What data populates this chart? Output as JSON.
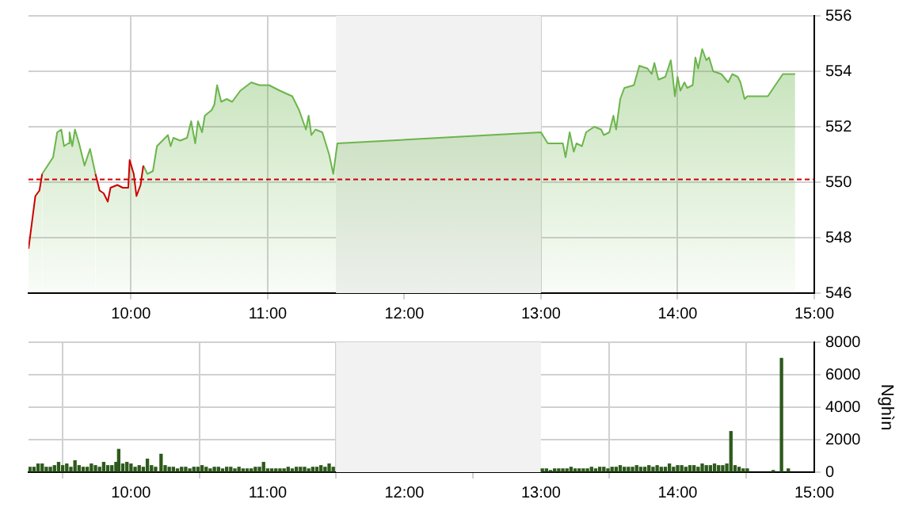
{
  "chart_data": [
    {
      "type": "area",
      "x": [
        9.25,
        9.3,
        9.33,
        9.35,
        9.39,
        9.43,
        9.46,
        9.49,
        9.51,
        9.54,
        9.55,
        9.57,
        9.59,
        9.62,
        9.66,
        9.7,
        9.74,
        9.77,
        9.8,
        9.83,
        9.85,
        9.9,
        9.94,
        9.98,
        9.99,
        10.02,
        10.04,
        10.07,
        10.09,
        10.12,
        10.16,
        10.19,
        10.25,
        10.27,
        10.29,
        10.31,
        10.36,
        10.41,
        10.44,
        10.47,
        10.49,
        10.52,
        10.54,
        10.59,
        10.61,
        10.63,
        10.66,
        10.7,
        10.74,
        10.8,
        10.88,
        10.94,
        11.01,
        11.09,
        11.18,
        11.23,
        11.28,
        11.3,
        11.32,
        11.35,
        11.4,
        11.45,
        11.48,
        11.51,
        13.0,
        13.05,
        13.16,
        13.18,
        13.21,
        13.24,
        13.26,
        13.3,
        13.33,
        13.39,
        13.44,
        13.46,
        13.5,
        13.53,
        13.55,
        13.58,
        13.61,
        13.68,
        13.72,
        13.78,
        13.81,
        13.83,
        13.86,
        13.91,
        13.95,
        13.96,
        13.98,
        14.0,
        14.02,
        14.05,
        14.07,
        14.11,
        14.13,
        14.15,
        14.18,
        14.21,
        14.23,
        14.26,
        14.32,
        14.37,
        14.4,
        14.44,
        14.46,
        14.49,
        14.51,
        14.66,
        14.77,
        14.86
      ],
      "series": [
        {
          "color": "#cc0000",
          "values": [
            547.6,
            549.5,
            549.7,
            550.3,
            null,
            null,
            null,
            null,
            null,
            null,
            null,
            null,
            null,
            null,
            null,
            null,
            550.3,
            549.7,
            549.6,
            549.3,
            549.8,
            549.9,
            549.8,
            549.8,
            550.8,
            550.3,
            549.5,
            549.9,
            550.6,
            null,
            null,
            null,
            null,
            null,
            null,
            null,
            null,
            null,
            null,
            null,
            null,
            null,
            null,
            null,
            null,
            null,
            null,
            null,
            null,
            null,
            null,
            null,
            null,
            null,
            null,
            null,
            null,
            null,
            null,
            null,
            null,
            null,
            null,
            null,
            null,
            null,
            null,
            null,
            null,
            null,
            null,
            null,
            null,
            null,
            null,
            null,
            null,
            null,
            null,
            null,
            null,
            null,
            null,
            null,
            null,
            null,
            null,
            null,
            null,
            null,
            null,
            null,
            null,
            null,
            null,
            null,
            null,
            null,
            null,
            null,
            null,
            null,
            null,
            null,
            null,
            null,
            null,
            null,
            null,
            null,
            null,
            null
          ]
        },
        {
          "color": "#6cb54c",
          "values": [
            null,
            null,
            null,
            550.3,
            550.6,
            550.9,
            551.8,
            551.9,
            551.3,
            551.4,
            551.8,
            551.3,
            551.9,
            551.4,
            550.6,
            551.2,
            550.3,
            null,
            null,
            null,
            null,
            null,
            null,
            null,
            null,
            null,
            null,
            null,
            550.6,
            550.3,
            550.4,
            551.3,
            551.6,
            551.7,
            551.3,
            551.6,
            551.5,
            551.6,
            552.2,
            551.4,
            552.2,
            551.8,
            552.4,
            552.6,
            552.8,
            553.5,
            552.9,
            553.0,
            552.9,
            553.3,
            553.6,
            553.5,
            553.5,
            553.3,
            553.1,
            552.6,
            551.9,
            552.4,
            551.7,
            551.9,
            551.8,
            551.0,
            550.3,
            551.4,
            551.8,
            551.4,
            551.4,
            550.9,
            551.8,
            551.1,
            551.4,
            551.3,
            551.8,
            552.0,
            551.9,
            551.7,
            551.8,
            552.4,
            551.9,
            553.0,
            553.4,
            553.5,
            554.2,
            554.1,
            553.9,
            554.3,
            553.7,
            553.8,
            554.4,
            554.0,
            553.1,
            553.8,
            553.3,
            553.6,
            553.4,
            553.5,
            554.5,
            554.1,
            554.8,
            554.4,
            554.5,
            554.0,
            553.9,
            553.6,
            553.9,
            553.8,
            553.6,
            553.0,
            553.1,
            553.1,
            553.9,
            553.9
          ]
        }
      ],
      "xlim": [
        9.25,
        15
      ],
      "xticks": [
        {
          "value": 10,
          "label": "10:00"
        },
        {
          "value": 11,
          "label": "11:00"
        },
        {
          "value": 12,
          "label": "12:00"
        },
        {
          "value": 13,
          "label": "13:00"
        },
        {
          "value": 14,
          "label": "14:00"
        },
        {
          "value": 15,
          "label": "15:00"
        }
      ],
      "ylim": [
        546,
        556
      ],
      "yticks": [
        546,
        548,
        550,
        552,
        554,
        556
      ],
      "grid": true,
      "ref_lines": [
        {
          "axis": "y",
          "value": 550.1,
          "color": "#cc0000",
          "line_style": "dashed"
        }
      ],
      "bands": [
        {
          "axis": "x",
          "from": 11.5,
          "to": 13,
          "color": "#f2f2f2"
        }
      ]
    },
    {
      "type": "bar",
      "ylabel": "Nghìn",
      "x": [
        9.26,
        9.29,
        9.32,
        9.35,
        9.38,
        9.41,
        9.44,
        9.47,
        9.5,
        9.53,
        9.56,
        9.59,
        9.62,
        9.65,
        9.68,
        9.71,
        9.74,
        9.77,
        9.8,
        9.83,
        9.86,
        9.89,
        9.91,
        9.94,
        9.97,
        10.0,
        10.03,
        10.06,
        10.09,
        10.12,
        10.15,
        10.18,
        10.22,
        10.25,
        10.28,
        10.31,
        10.34,
        10.37,
        10.4,
        10.43,
        10.46,
        10.49,
        10.52,
        10.55,
        10.58,
        10.61,
        10.64,
        10.67,
        10.7,
        10.73,
        10.76,
        10.79,
        10.82,
        10.85,
        10.88,
        10.91,
        10.94,
        10.97,
        11.0,
        11.03,
        11.06,
        11.09,
        11.12,
        11.15,
        11.18,
        11.21,
        11.24,
        11.27,
        11.3,
        11.33,
        11.36,
        11.39,
        11.42,
        11.45,
        11.48,
        13.01,
        13.04,
        13.07,
        13.1,
        13.13,
        13.16,
        13.19,
        13.22,
        13.25,
        13.28,
        13.31,
        13.34,
        13.37,
        13.4,
        13.43,
        13.46,
        13.49,
        13.52,
        13.55,
        13.58,
        13.61,
        13.64,
        13.67,
        13.7,
        13.73,
        13.76,
        13.79,
        13.82,
        13.85,
        13.88,
        13.91,
        13.94,
        13.97,
        14.0,
        14.03,
        14.06,
        14.09,
        14.12,
        14.15,
        14.18,
        14.21,
        14.24,
        14.27,
        14.3,
        14.33,
        14.36,
        14.39,
        14.42,
        14.45,
        14.48,
        14.51,
        14.7,
        14.76,
        14.81
      ],
      "series": [
        {
          "color": "#2d5a1b",
          "values": [
            300,
            300,
            500,
            500,
            300,
            300,
            400,
            600,
            400,
            500,
            300,
            700,
            400,
            300,
            300,
            500,
            400,
            300,
            600,
            400,
            400,
            600,
            1400,
            500,
            600,
            500,
            300,
            400,
            300,
            800,
            400,
            300,
            1100,
            400,
            300,
            300,
            200,
            300,
            300,
            200,
            300,
            300,
            400,
            300,
            200,
            300,
            300,
            200,
            300,
            300,
            200,
            300,
            200,
            200,
            200,
            300,
            300,
            600,
            200,
            200,
            200,
            200,
            200,
            300,
            200,
            300,
            300,
            300,
            200,
            300,
            300,
            400,
            300,
            500,
            300,
            200,
            200,
            100,
            200,
            200,
            200,
            200,
            300,
            200,
            200,
            200,
            200,
            300,
            200,
            300,
            300,
            200,
            300,
            300,
            400,
            300,
            300,
            300,
            400,
            300,
            300,
            400,
            300,
            400,
            300,
            300,
            500,
            300,
            400,
            400,
            300,
            400,
            400,
            300,
            500,
            400,
            400,
            500,
            400,
            400,
            500,
            2500,
            400,
            300,
            200,
            200,
            100,
            7000,
            200
          ]
        }
      ],
      "xlim": [
        9.25,
        15
      ],
      "xticks": [
        {
          "value": 10,
          "label": "10:00"
        },
        {
          "value": 11,
          "label": "11:00"
        },
        {
          "value": 12,
          "label": "12:00"
        },
        {
          "value": 13,
          "label": "13:00"
        },
        {
          "value": 14,
          "label": "14:00"
        },
        {
          "value": 15,
          "label": "15:00"
        }
      ],
      "ylim": [
        0,
        8000
      ],
      "yticks": [
        0,
        2000,
        4000,
        6000,
        8000
      ],
      "grid": true,
      "bands": [
        {
          "axis": "x",
          "from": 11.5,
          "to": 13,
          "color": "#f2f2f2"
        }
      ]
    }
  ]
}
